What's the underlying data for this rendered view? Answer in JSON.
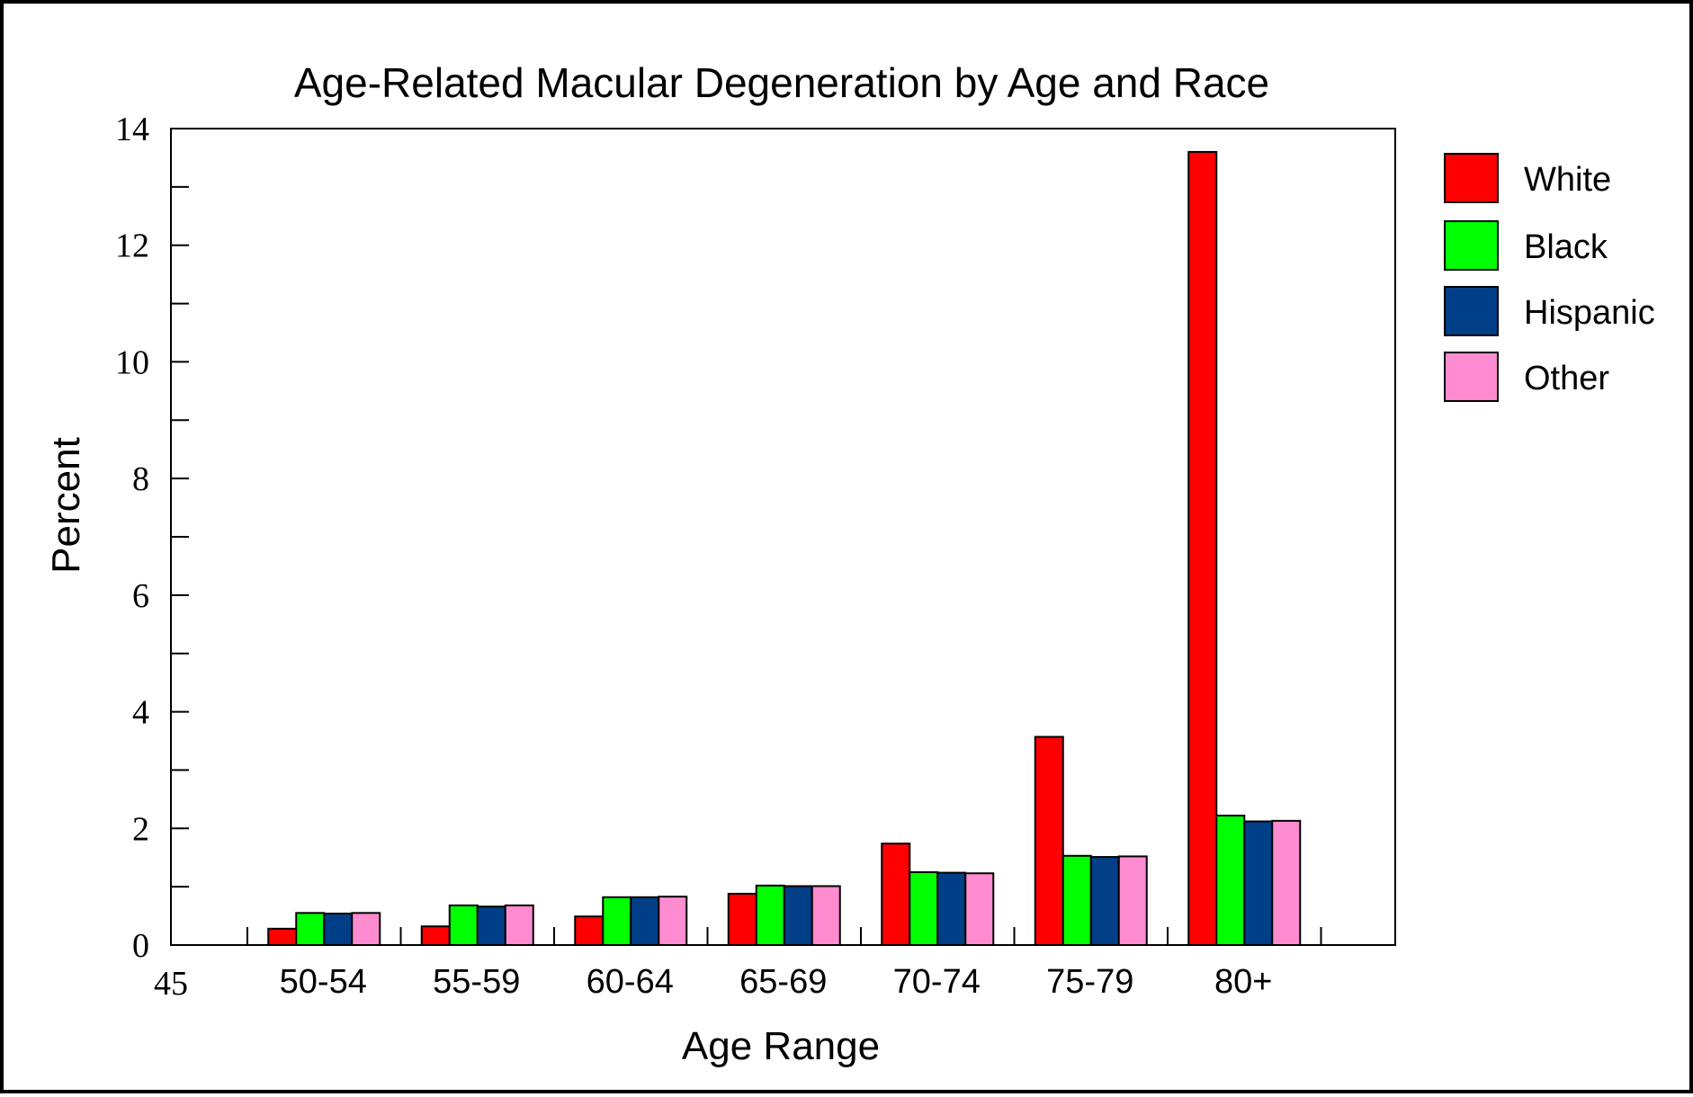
{
  "chart_data": {
    "type": "bar",
    "title": "Age-Related Macular Degeneration by Age and Race",
    "xlabel": "Age Range",
    "ylabel": "Percent",
    "x_start_tick_label": "45",
    "categories": [
      "50-54",
      "55-59",
      "60-64",
      "65-69",
      "70-74",
      "75-79",
      "80+"
    ],
    "series": [
      {
        "name": "White",
        "color": "#ff0000",
        "values": [
          0.28,
          0.32,
          0.49,
          0.88,
          1.74,
          3.57,
          13.6
        ]
      },
      {
        "name": "Black",
        "color": "#00ff00",
        "values": [
          0.55,
          0.68,
          0.82,
          1.02,
          1.25,
          1.53,
          2.22
        ]
      },
      {
        "name": "Hispanic",
        "color": "#003f87",
        "values": [
          0.54,
          0.66,
          0.82,
          1.01,
          1.24,
          1.51,
          2.12
        ]
      },
      {
        "name": "Other",
        "color": "#ff8cd0",
        "values": [
          0.55,
          0.68,
          0.83,
          1.01,
          1.23,
          1.52,
          2.13
        ]
      }
    ],
    "ylim": [
      0,
      14
    ],
    "yticks": [
      "0",
      "2",
      "4",
      "6",
      "8",
      "10",
      "12",
      "14"
    ],
    "grid": false,
    "legend_position": "right"
  }
}
